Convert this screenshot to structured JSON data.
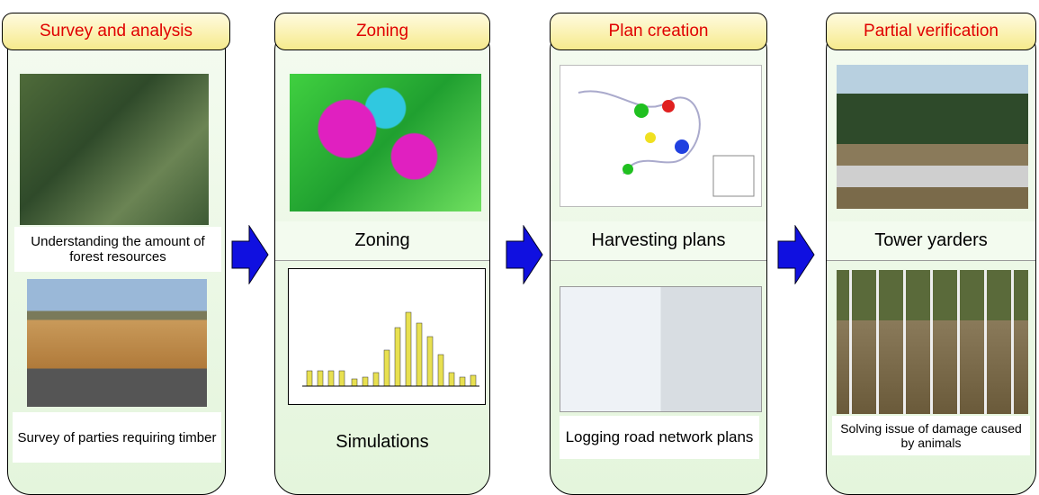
{
  "columns": [
    {
      "header": "Survey and analysis",
      "captions": [
        "Understanding the amount of forest resources",
        "Survey of parties requiring timber"
      ]
    },
    {
      "header": "Zoning",
      "captions": [
        "Zoning",
        "Simulations"
      ]
    },
    {
      "header": "Plan creation",
      "captions": [
        "Harvesting plans",
        "Logging road network plans"
      ]
    },
    {
      "header": "Partial verification",
      "captions": [
        "Tower yarders",
        "Solving issue of damage caused by animals"
      ]
    }
  ]
}
